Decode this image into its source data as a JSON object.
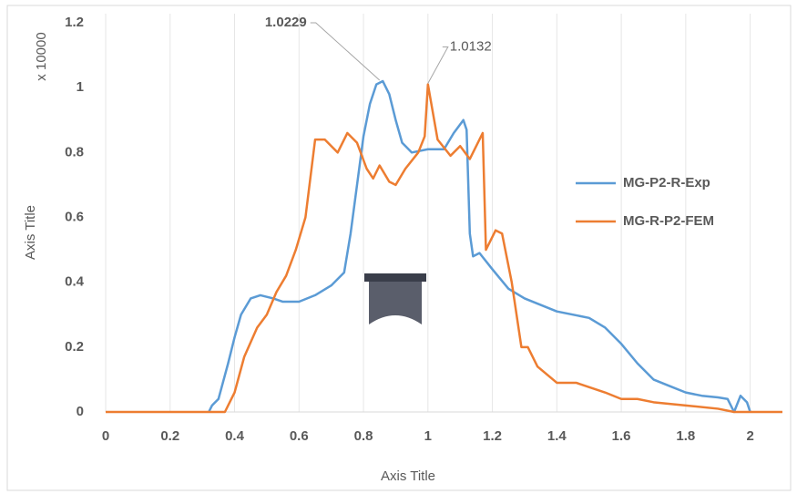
{
  "chart_data": {
    "type": "line",
    "xlabel": "Axis Title",
    "ylabel": "Axis Title",
    "y_unit": "x 10000",
    "xlim": [
      0,
      2.1
    ],
    "ylim": [
      0,
      1.2
    ],
    "xticks": [
      0,
      0.2,
      0.4,
      0.6,
      0.8,
      1,
      1.2,
      1.4,
      1.6,
      1.8,
      2
    ],
    "yticks": [
      0,
      0.2,
      0.4,
      0.6,
      0.8,
      1,
      1.2
    ],
    "grid": "x",
    "legend": "right",
    "series": [
      {
        "name": "MG-P2-R-Exp",
        "color": "#5b9bd5",
        "x": [
          0.32,
          0.33,
          0.35,
          0.38,
          0.4,
          0.42,
          0.45,
          0.48,
          0.52,
          0.55,
          0.6,
          0.65,
          0.7,
          0.74,
          0.76,
          0.78,
          0.8,
          0.82,
          0.84,
          0.86,
          0.88,
          0.9,
          0.92,
          0.95,
          1.0,
          1.05,
          1.08,
          1.11,
          1.12,
          1.13,
          1.14,
          1.16,
          1.2,
          1.25,
          1.3,
          1.35,
          1.4,
          1.5,
          1.55,
          1.6,
          1.65,
          1.7,
          1.75,
          1.8,
          1.85,
          1.9,
          1.93,
          1.95,
          1.97,
          1.99,
          2.0
        ],
        "values": [
          0,
          0.02,
          0.04,
          0.15,
          0.23,
          0.3,
          0.35,
          0.36,
          0.35,
          0.34,
          0.34,
          0.36,
          0.39,
          0.43,
          0.55,
          0.7,
          0.85,
          0.95,
          1.01,
          1.02,
          0.98,
          0.9,
          0.83,
          0.8,
          0.81,
          0.81,
          0.86,
          0.9,
          0.87,
          0.55,
          0.48,
          0.49,
          0.44,
          0.38,
          0.35,
          0.33,
          0.31,
          0.29,
          0.26,
          0.21,
          0.15,
          0.1,
          0.08,
          0.06,
          0.05,
          0.045,
          0.04,
          0.0,
          0.05,
          0.03,
          0
        ]
      },
      {
        "name": "MG-R-P2-FEM",
        "color": "#ed7d31",
        "x": [
          0,
          0.37,
          0.4,
          0.43,
          0.47,
          0.5,
          0.53,
          0.56,
          0.59,
          0.62,
          0.65,
          0.68,
          0.72,
          0.75,
          0.78,
          0.81,
          0.83,
          0.85,
          0.88,
          0.9,
          0.93,
          0.97,
          0.99,
          1.0,
          1.03,
          1.07,
          1.1,
          1.13,
          1.17,
          1.18,
          1.21,
          1.23,
          1.26,
          1.29,
          1.31,
          1.34,
          1.4,
          1.46,
          1.55,
          1.6,
          1.65,
          1.7,
          1.8,
          1.9,
          1.95,
          2.05,
          2.1
        ],
        "values": [
          0,
          0,
          0.06,
          0.17,
          0.26,
          0.3,
          0.37,
          0.42,
          0.5,
          0.6,
          0.84,
          0.84,
          0.8,
          0.86,
          0.83,
          0.75,
          0.72,
          0.76,
          0.71,
          0.7,
          0.75,
          0.8,
          0.85,
          1.01,
          0.84,
          0.79,
          0.82,
          0.78,
          0.86,
          0.5,
          0.56,
          0.55,
          0.4,
          0.2,
          0.2,
          0.14,
          0.09,
          0.09,
          0.06,
          0.04,
          0.04,
          0.03,
          0.02,
          0.01,
          0.0,
          0,
          0
        ]
      }
    ],
    "annotations": [
      {
        "x": 0.85,
        "value": 1.0229
      },
      {
        "x": 1.0,
        "value": 1.0132
      }
    ]
  }
}
